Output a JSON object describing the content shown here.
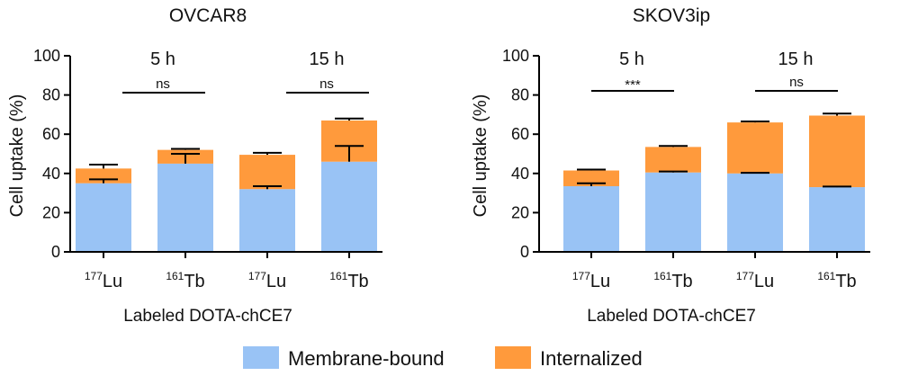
{
  "chart_data": [
    {
      "type": "bar",
      "stacked": true,
      "title": "OVCAR8",
      "xlabel": "Labeled DOTA-chCE7",
      "ylabel": "Cell uptake (%)",
      "ylim": [
        0,
        100
      ],
      "yticks": [
        0,
        20,
        40,
        60,
        80,
        100
      ],
      "categories": [
        {
          "mass": "177",
          "element": "Lu"
        },
        {
          "mass": "161",
          "element": "Tb"
        },
        {
          "mass": "177",
          "element": "Lu"
        },
        {
          "mass": "161",
          "element": "Tb"
        }
      ],
      "series": [
        {
          "name": "Membrane-bound",
          "values": [
            35,
            45,
            32,
            46
          ],
          "errors": [
            2,
            5,
            1.5,
            8
          ]
        },
        {
          "name": "Internalized",
          "values": [
            7.5,
            7,
            17.5,
            21
          ],
          "errors": [
            2,
            0.5,
            1,
            1
          ]
        }
      ],
      "groups": [
        {
          "label": "5 h",
          "significance": "ns"
        },
        {
          "label": "15 h",
          "significance": "ns"
        }
      ]
    },
    {
      "type": "bar",
      "stacked": true,
      "title": "SKOV3ip",
      "xlabel": "Labeled DOTA-chCE7",
      "ylabel": "Cell uptake (%)",
      "ylim": [
        0,
        100
      ],
      "yticks": [
        0,
        20,
        40,
        60,
        80,
        100
      ],
      "categories": [
        {
          "mass": "177",
          "element": "Lu"
        },
        {
          "mass": "161",
          "element": "Tb"
        },
        {
          "mass": "177",
          "element": "Lu"
        },
        {
          "mass": "161",
          "element": "Tb"
        }
      ],
      "series": [
        {
          "name": "Membrane-bound",
          "values": [
            33.5,
            40.5,
            40,
            33
          ],
          "errors": [
            1.5,
            0.5,
            0.3,
            0.3
          ]
        },
        {
          "name": "Internalized",
          "values": [
            8,
            13,
            26,
            36.5
          ],
          "errors": [
            0.5,
            0.5,
            0.5,
            1
          ]
        }
      ],
      "groups": [
        {
          "label": "5 h",
          "significance": "***"
        },
        {
          "label": "15 h",
          "significance": "ns"
        }
      ]
    }
  ],
  "legend": [
    {
      "name": "Membrane-bound",
      "color": "#99c3f5"
    },
    {
      "name": "Internalized",
      "color": "#ff9a3c"
    }
  ]
}
